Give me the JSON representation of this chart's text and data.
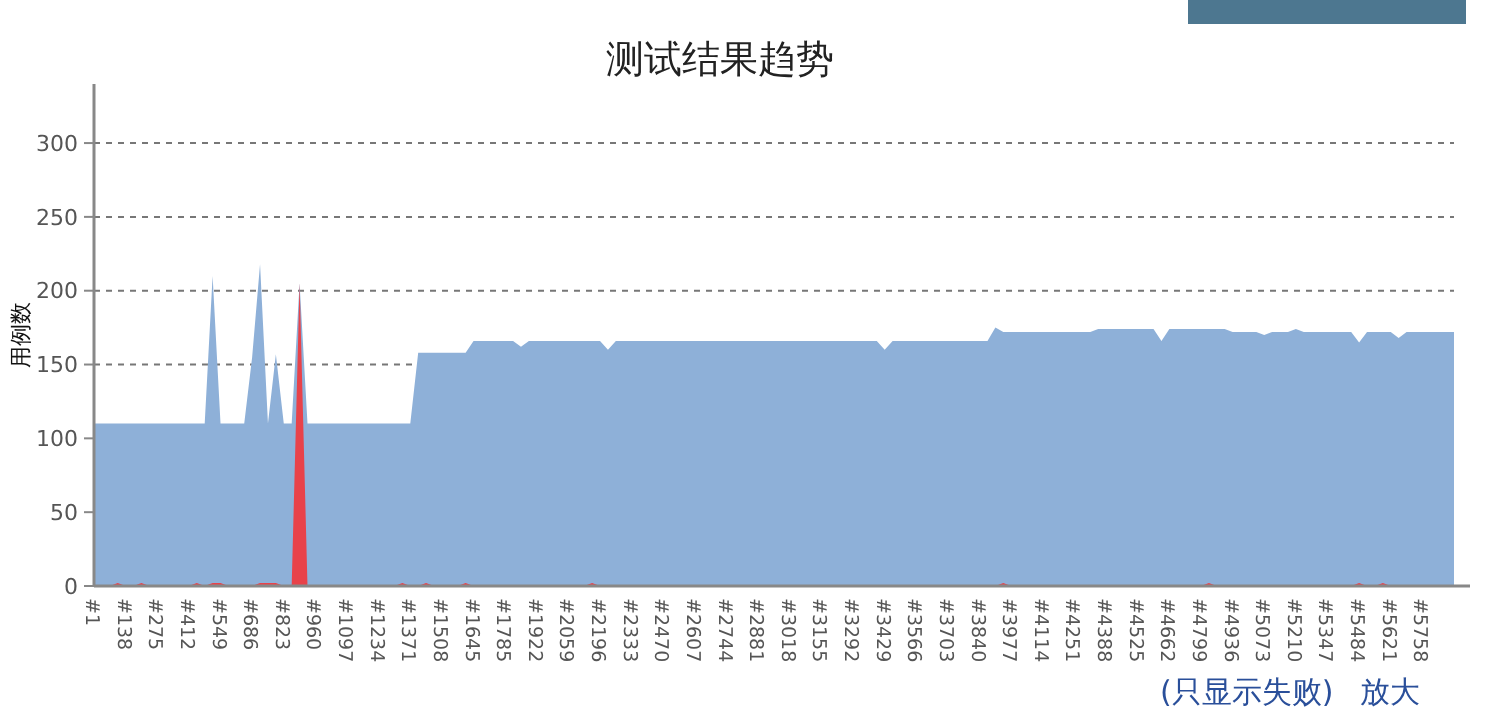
{
  "chart_data": {
    "type": "area",
    "title": "测试结果趋势",
    "ylabel": "用例数",
    "categories": [
      "#1",
      null,
      null,
      null,
      "#138",
      null,
      null,
      null,
      "#275",
      null,
      null,
      null,
      "#412",
      null,
      null,
      null,
      "#549",
      null,
      null,
      null,
      "#686",
      null,
      null,
      null,
      "#823",
      null,
      null,
      null,
      "#960",
      null,
      null,
      null,
      "#1097",
      null,
      null,
      null,
      "#1234",
      null,
      null,
      null,
      "#1371",
      null,
      null,
      null,
      "#1508",
      null,
      null,
      null,
      "#1645",
      null,
      null,
      null,
      "#1785",
      null,
      null,
      null,
      "#1922",
      null,
      null,
      null,
      "#2059",
      null,
      null,
      null,
      "#2196",
      null,
      null,
      null,
      "#2333",
      null,
      null,
      null,
      "#2470",
      null,
      null,
      null,
      "#2607",
      null,
      null,
      null,
      "#2744",
      null,
      null,
      null,
      "#2881",
      null,
      null,
      null,
      "#3018",
      null,
      null,
      null,
      "#3155",
      null,
      null,
      null,
      "#3292",
      null,
      null,
      null,
      "#3429",
      null,
      null,
      null,
      "#3566",
      null,
      null,
      null,
      "#3703",
      null,
      null,
      null,
      "#3840",
      null,
      null,
      null,
      "#3977",
      null,
      null,
      null,
      "#4114",
      null,
      null,
      null,
      "#4251",
      null,
      null,
      null,
      "#4388",
      null,
      null,
      null,
      "#4525",
      null,
      null,
      null,
      "#4662",
      null,
      null,
      null,
      "#4799",
      null,
      null,
      null,
      "#4936",
      null,
      null,
      null,
      "#5073",
      null,
      null,
      null,
      "#5210",
      null,
      null,
      null,
      "#5347",
      null,
      null,
      null,
      "#5484",
      null,
      null,
      null,
      "#5621",
      null,
      null,
      null,
      "#5758",
      null,
      null,
      null,
      null
    ],
    "series": [
      {
        "color": "#8eb0d8",
        "values": [
          110,
          110,
          110,
          110,
          110,
          110,
          110,
          110,
          110,
          110,
          110,
          110,
          110,
          110,
          110,
          210,
          110,
          110,
          110,
          110,
          155,
          218,
          110,
          157,
          110,
          110,
          205,
          110,
          110,
          110,
          110,
          110,
          110,
          110,
          110,
          110,
          110,
          110,
          110,
          110,
          110,
          158,
          158,
          158,
          158,
          158,
          158,
          158,
          166,
          166,
          166,
          166,
          166,
          166,
          162,
          166,
          166,
          166,
          166,
          166,
          166,
          166,
          166,
          166,
          166,
          160,
          166,
          166,
          166,
          166,
          166,
          166,
          166,
          166,
          166,
          166,
          166,
          166,
          166,
          166,
          166,
          166,
          166,
          166,
          166,
          166,
          166,
          166,
          166,
          166,
          166,
          166,
          166,
          166,
          166,
          166,
          166,
          166,
          166,
          166,
          160,
          166,
          166,
          166,
          166,
          166,
          166,
          166,
          166,
          166,
          166,
          166,
          166,
          166,
          175,
          172,
          172,
          172,
          172,
          172,
          172,
          172,
          172,
          172,
          172,
          172,
          172,
          174,
          174,
          174,
          174,
          174,
          174,
          174,
          174,
          166,
          174,
          174,
          174,
          174,
          174,
          174,
          174,
          174,
          172,
          172,
          172,
          172,
          170,
          172,
          172,
          172,
          174,
          172,
          172,
          172,
          172,
          172,
          172,
          172,
          165,
          172,
          172,
          172,
          172,
          168,
          172,
          172,
          172,
          172,
          172,
          172,
          172
        ]
      },
      {
        "color": "#e8424a",
        "values": [
          0,
          0,
          0,
          2,
          0,
          0,
          2,
          0,
          0,
          0,
          0,
          0,
          0,
          2,
          0,
          2,
          2,
          0,
          0,
          0,
          0,
          2,
          2,
          2,
          0,
          0,
          205,
          0,
          0,
          0,
          0,
          0,
          0,
          0,
          0,
          0,
          0,
          0,
          0,
          2,
          0,
          0,
          2,
          0,
          0,
          0,
          0,
          2,
          0,
          0,
          0,
          0,
          0,
          0,
          0,
          0,
          0,
          0,
          0,
          0,
          0,
          0,
          0,
          2,
          0,
          0,
          0,
          0,
          0,
          0,
          0,
          0,
          0,
          0,
          0,
          0,
          0,
          0,
          0,
          0,
          0,
          0,
          0,
          0,
          0,
          0,
          0,
          0,
          0,
          0,
          0,
          0,
          0,
          0,
          0,
          0,
          0,
          0,
          0,
          0,
          0,
          0,
          0,
          0,
          0,
          0,
          0,
          0,
          0,
          0,
          0,
          0,
          0,
          0,
          0,
          2,
          0,
          0,
          0,
          0,
          0,
          0,
          0,
          0,
          0,
          0,
          0,
          0,
          0,
          0,
          0,
          0,
          0,
          0,
          0,
          0,
          0,
          0,
          0,
          0,
          0,
          2,
          0,
          0,
          0,
          0,
          0,
          0,
          0,
          0,
          0,
          0,
          0,
          0,
          0,
          0,
          0,
          0,
          0,
          0,
          2,
          0,
          0,
          2,
          0,
          0,
          0,
          0,
          0,
          0,
          0,
          0,
          0
        ]
      }
    ],
    "ylim": [
      0,
      340
    ],
    "yticks": [
      0,
      50,
      100,
      150,
      200,
      250,
      300
    ],
    "grid": "y",
    "annotations": [
      "(只显示失败)",
      "放大"
    ]
  }
}
